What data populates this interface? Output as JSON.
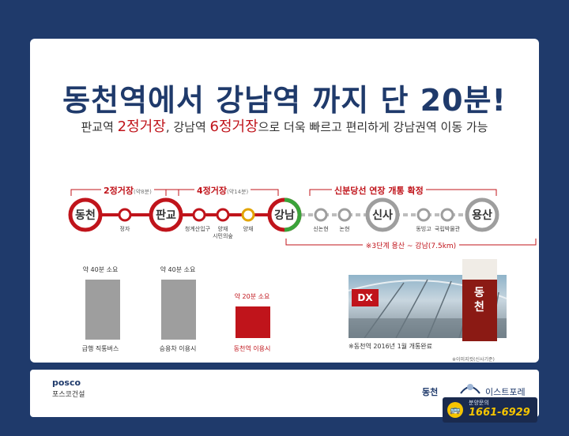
{
  "headline": "동천역에서 강남역 까지 단 20분!",
  "subline": {
    "part1": "판교역 ",
    "red1": "2정거장",
    "part2": ", 강남역 ",
    "red2": "6정거장",
    "part3": "으로 더욱 빠르고 편리하게 강남권역 이동 가능"
  },
  "route": {
    "bracket1": {
      "label": "2정거장",
      "note": "(약8분)"
    },
    "bracket2": {
      "label": "4정거장",
      "note": "(약14분)"
    },
    "bracket3": {
      "label": "신분당선 연장 개통 확정"
    },
    "big_stations": [
      "동천",
      "판교",
      "강남",
      "신사",
      "용산"
    ],
    "small_labels": [
      "정자",
      "청계산입구",
      "양재\n시민의숲",
      "양재",
      "신논현",
      "논현",
      "동빙고",
      "국립박물관"
    ],
    "extension_label": "※3단계  용산 ~ 강남(7.5km)"
  },
  "bars": [
    {
      "caption": "약 40분 소요",
      "label": "급행 직통버스",
      "color": "#9e9e9e"
    },
    {
      "caption": "약 40분 소요",
      "label": "승용차 이용시",
      "color": "#9e9e9e"
    },
    {
      "caption": "약 20분 소요",
      "label": "동천역 이용시",
      "color": "#c0141b"
    }
  ],
  "photo": {
    "dx_text": "DX",
    "tower_text": "동천",
    "caption": "※동천역 2016년 1월 개통완료",
    "note": "※이미지컷(신사기준)"
  },
  "footer": {
    "posco_en": "posco",
    "posco_kr": "포스코건설",
    "brand_left": "동천",
    "brand_right": "이스트포레",
    "hotline_title": "분양문의",
    "hotline_number": "1661-6929"
  },
  "colors": {
    "navy": "#1f3a6b",
    "red": "#c0141b",
    "gray": "#9e9e9e",
    "green": "#3aa33a",
    "gold": "#f5c400"
  }
}
